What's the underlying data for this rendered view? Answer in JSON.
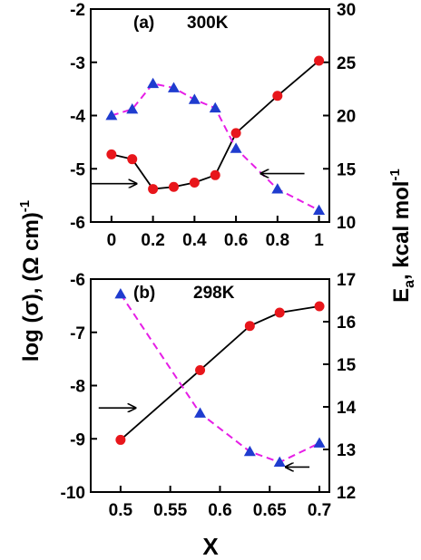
{
  "y_left_label": "log (σ),  (Ω cm)",
  "y_left_sup": "-1",
  "y_right_label": "E",
  "y_right_sub": "a",
  "y_right_unit": ", kcal mol",
  "y_right_sup": "-1",
  "x_label": "X",
  "colors": {
    "conductivity": "#e8161b",
    "activation": "#1f3ccf",
    "conductivity_line": "#000000",
    "activation_line": "#e61ee6"
  },
  "chart_data": [
    {
      "type": "line",
      "panel_label": "(a)",
      "temperature": "300K",
      "xlim": [
        -0.1,
        1.05
      ],
      "ylim_left": [
        -6,
        -2
      ],
      "ylim_right": [
        10,
        30
      ],
      "x_ticks": [
        0,
        0.2,
        0.4,
        0.6,
        0.8,
        1
      ],
      "x_tick_labels": [
        "0",
        "0.2",
        "0.4",
        "0.6",
        "0.8",
        "1"
      ],
      "y_left_ticks": [
        -6,
        -5,
        -4,
        -3,
        -2
      ],
      "y_left_tick_labels": [
        "-6",
        "-5",
        "-4",
        "-3",
        "-2"
      ],
      "y_right_ticks": [
        10,
        15,
        20,
        25,
        30
      ],
      "y_right_tick_labels": [
        "10",
        "15",
        "20",
        "25",
        "30"
      ],
      "series": [
        {
          "marker": "circle",
          "axis": "left",
          "line": "solid",
          "x": [
            0,
            0.1,
            0.2,
            0.3,
            0.4,
            0.5,
            0.6,
            0.8,
            1
          ],
          "y": [
            -4.73,
            -4.82,
            -5.38,
            -5.34,
            -5.26,
            -5.12,
            -4.33,
            -3.63,
            -2.97
          ]
        },
        {
          "marker": "triangle",
          "axis": "right",
          "line": "dashed",
          "x": [
            0,
            0.1,
            0.2,
            0.3,
            0.4,
            0.5,
            0.6,
            0.8,
            1
          ],
          "y": [
            20.0,
            20.6,
            23.0,
            22.6,
            21.5,
            20.7,
            16.9,
            13.1,
            11.1
          ]
        }
      ],
      "arrows": [
        {
          "direction": "right",
          "x_from": -0.1,
          "x_to": 0.12,
          "y_left": -5.28
        },
        {
          "direction": "left",
          "x_from": 0.93,
          "x_to": 0.72,
          "y_left": -5.09
        }
      ]
    },
    {
      "type": "line",
      "panel_label": "(b)",
      "temperature": "298K",
      "xlim": [
        0.47,
        0.71
      ],
      "ylim_left": [
        -10,
        -6
      ],
      "ylim_right": [
        12,
        17
      ],
      "x_ticks": [
        0.5,
        0.55,
        0.6,
        0.65,
        0.7
      ],
      "x_tick_labels": [
        "0.5",
        "0.55",
        "0.6",
        "0.65",
        "0.7"
      ],
      "y_left_ticks": [
        -10,
        -9,
        -8,
        -7,
        -6
      ],
      "y_left_tick_labels": [
        "-10",
        "-9",
        "-8",
        "-7",
        "-6"
      ],
      "y_right_ticks": [
        12,
        13,
        14,
        15,
        16,
        17
      ],
      "y_right_tick_labels": [
        "12",
        "13",
        "14",
        "15",
        "16",
        "17"
      ],
      "series": [
        {
          "marker": "circle",
          "axis": "left",
          "line": "solid",
          "x": [
            0.5,
            0.58,
            0.63,
            0.66,
            0.7
          ],
          "y": [
            -9.02,
            -7.71,
            -6.88,
            -6.63,
            -6.51
          ]
        },
        {
          "marker": "triangle",
          "axis": "right",
          "line": "dashed",
          "x": [
            0.5,
            0.58,
            0.63,
            0.66,
            0.7
          ],
          "y": [
            16.65,
            13.85,
            12.95,
            12.7,
            13.15
          ]
        }
      ],
      "arrows": [
        {
          "direction": "right",
          "x_from": 0.478,
          "x_to": 0.515,
          "y_left": -8.42
        },
        {
          "direction": "left",
          "x_from": 0.69,
          "x_to": 0.666,
          "y_left": -9.53
        }
      ]
    }
  ]
}
